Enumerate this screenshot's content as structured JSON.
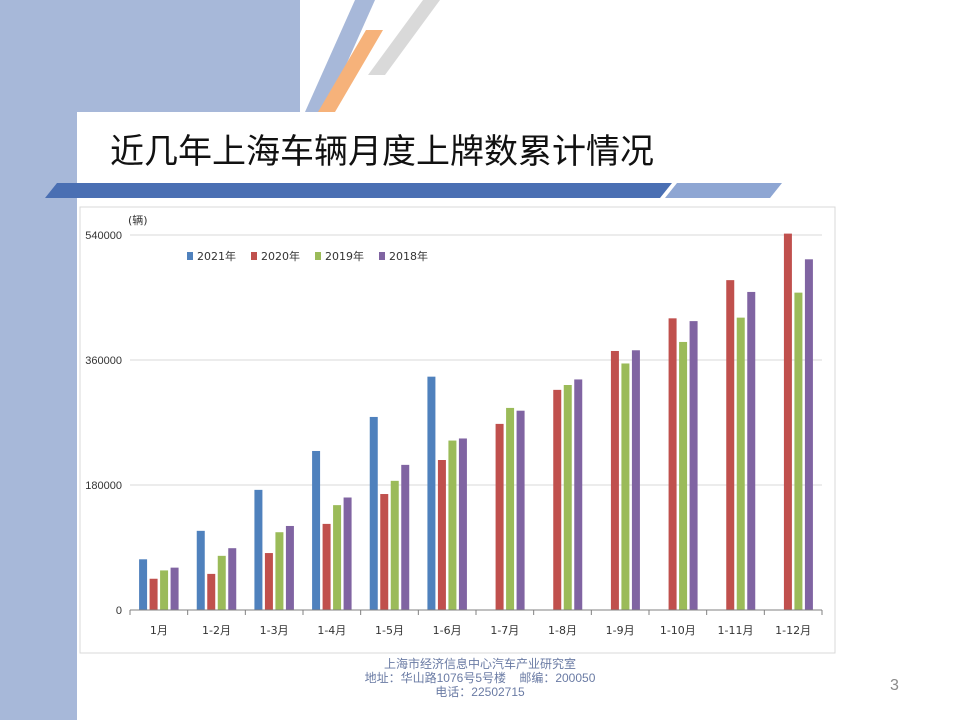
{
  "slide": {
    "title": "近几年上海车辆月度上牌数累计情况",
    "page_number": "3",
    "footer": {
      "line1": "上海市经济信息中心汽车产业研究室",
      "line2": "地址：华山路1076号5号楼    邮编：200050",
      "line3": "电话：22502715"
    },
    "colors": {
      "band": "#a7b8d9",
      "accent_blue": "#4a6fb3",
      "accent_orange": "#f6b27a",
      "accent_gray": "#d9d9d9"
    }
  },
  "chart_data": {
    "type": "bar",
    "unit_label": "(辆)",
    "categories": [
      "1月",
      "1-2月",
      "1-3月",
      "1-4月",
      "1-5月",
      "1-6月",
      "1-7月",
      "1-8月",
      "1-9月",
      "1-10月",
      "1-11月",
      "1-12月"
    ],
    "series": [
      {
        "name": "2021年",
        "color": "#4f81bd",
        "values": [
          73000,
          114000,
          173000,
          229000,
          278000,
          336000,
          null,
          null,
          null,
          null,
          null,
          null
        ]
      },
      {
        "name": "2020年",
        "color": "#c0504d",
        "values": [
          45000,
          52000,
          82000,
          124000,
          167000,
          216000,
          268000,
          317000,
          373000,
          420000,
          475000,
          542000
        ]
      },
      {
        "name": "2019年",
        "color": "#9bbb59",
        "values": [
          57000,
          78000,
          112000,
          151000,
          186000,
          244000,
          291000,
          324000,
          355000,
          386000,
          421000,
          457000
        ]
      },
      {
        "name": "2018年",
        "color": "#8064a2",
        "values": [
          61000,
          89000,
          121000,
          162000,
          209000,
          247000,
          287000,
          332000,
          374000,
          416000,
          458000,
          505000
        ]
      }
    ],
    "yticks": [
      0,
      180000,
      360000,
      540000
    ],
    "ylim": [
      0,
      540000
    ],
    "grid": true,
    "legend_position": "top-left"
  }
}
